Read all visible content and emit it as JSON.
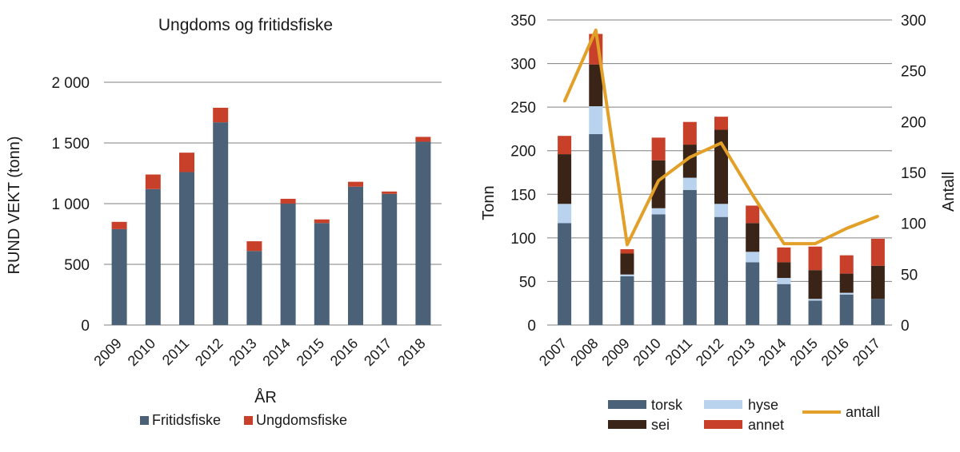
{
  "colors": {
    "fritidsfiske": "#4a6178",
    "ungdomsfiske": "#c9402a",
    "torsk": "#4a6178",
    "hyse": "#b9d3ee",
    "sei": "#3a2417",
    "annet": "#c9402a",
    "antall": "#e3a028",
    "grid": "#7f7f7f"
  },
  "chart_data": [
    {
      "type": "bar",
      "stacked": true,
      "title": "Ungdoms og fritidsfiske",
      "xlabel": "ÅR",
      "ylabel": "RUND VEKT (tonn)",
      "ylim": [
        0,
        2000
      ],
      "yticks": [
        0,
        500,
        1000,
        1500,
        2000
      ],
      "ytick_labels": [
        "0",
        "500",
        "1 000",
        "1 500",
        "2 000"
      ],
      "grid": true,
      "legend_position": "bottom",
      "categories": [
        "2009",
        "2010",
        "2011",
        "2012",
        "2013",
        "2014",
        "2015",
        "2016",
        "2017",
        "2018"
      ],
      "series": [
        {
          "name": "Fritidsfiske",
          "color_key": "fritidsfiske",
          "values": [
            790,
            1120,
            1260,
            1670,
            610,
            1000,
            840,
            1140,
            1080,
            1510
          ]
        },
        {
          "name": "Ungdomsfiske",
          "color_key": "ungdomsfiske",
          "values": [
            60,
            120,
            160,
            120,
            80,
            40,
            30,
            40,
            20,
            40
          ]
        }
      ]
    },
    {
      "type": "bar",
      "stacked": true,
      "title": "",
      "xlabel": "",
      "ylabel": "Tonn",
      "y2label": "Antall",
      "ylim": [
        0,
        350
      ],
      "yticks": [
        0,
        50,
        100,
        150,
        200,
        250,
        300,
        350
      ],
      "y2lim": [
        0,
        300
      ],
      "y2ticks": [
        0,
        50,
        100,
        150,
        200,
        250,
        300
      ],
      "grid": true,
      "legend_position": "bottom",
      "categories": [
        "2007",
        "2008",
        "2009",
        "2010",
        "2011",
        "2012",
        "2013",
        "2014",
        "2015",
        "2016",
        "2017"
      ],
      "series": [
        {
          "name": "torsk",
          "color_key": "torsk",
          "values": [
            117,
            219,
            56,
            127,
            155,
            124,
            72,
            47,
            28,
            35,
            30
          ]
        },
        {
          "name": "hyse",
          "color_key": "hyse",
          "values": [
            22,
            32,
            2,
            7,
            14,
            15,
            12,
            7,
            2,
            2,
            0
          ]
        },
        {
          "name": "sei",
          "color_key": "sei",
          "values": [
            57,
            48,
            24,
            55,
            38,
            85,
            33,
            18,
            33,
            22,
            38
          ]
        },
        {
          "name": "annet",
          "color_key": "annet",
          "values": [
            21,
            35,
            5,
            26,
            26,
            15,
            20,
            17,
            27,
            21,
            31
          ]
        }
      ],
      "line_series": {
        "name": "antall",
        "axis": "y2",
        "color_key": "antall",
        "values": [
          220,
          290,
          79,
          142,
          165,
          179,
          128,
          80,
          80,
          95,
          107
        ]
      }
    }
  ]
}
